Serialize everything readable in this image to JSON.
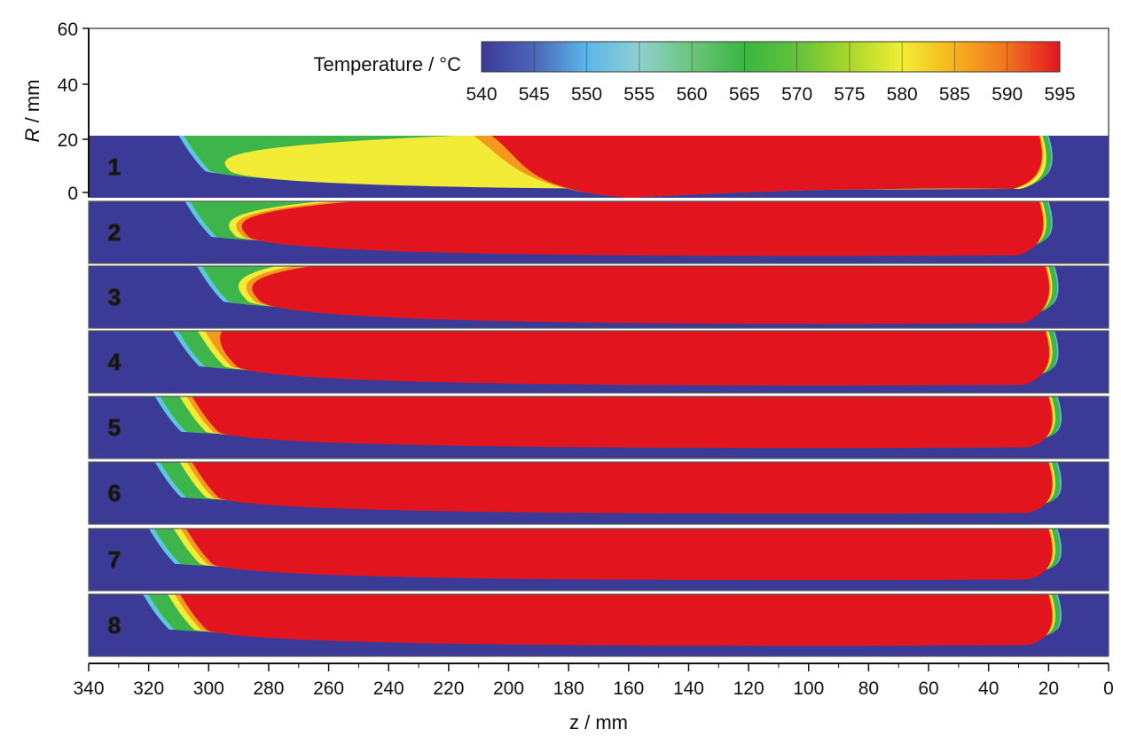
{
  "chart_data": {
    "type": "heatmap",
    "title": "",
    "colorbar": {
      "label": "Temperature / °C",
      "ticks": [
        "540",
        "545",
        "550",
        "555",
        "560",
        "565",
        "570",
        "575",
        "580",
        "585",
        "590",
        "595"
      ],
      "range": [
        540,
        595
      ],
      "colors": [
        "#3b3a97",
        "#4b66b8",
        "#5bb6e8",
        "#8fd0cf",
        "#6cc47a",
        "#3bb543",
        "#62c23a",
        "#a9d82a",
        "#f0ee36",
        "#f6b21c",
        "#f0731f",
        "#e2151f"
      ]
    },
    "xlabel": "z / mm",
    "ylabel_italic": "R",
    "ylabel_rest": " / mm",
    "x_axis": {
      "range": [
        340,
        0
      ],
      "reversed": true,
      "tick_labels": [
        "340",
        "320",
        "300",
        "280",
        "260",
        "240",
        "220",
        "200",
        "180",
        "160",
        "140",
        "120",
        "100",
        "80",
        "60",
        "40",
        "20",
        "0"
      ]
    },
    "y_axis": {
      "range": [
        0,
        60
      ],
      "tick_labels": [
        "0",
        "20",
        "40",
        "60"
      ]
    },
    "strip_r_range": [
      0,
      20
    ],
    "levels": [
      540,
      555,
      565,
      575,
      585,
      595
    ],
    "panels": [
      {
        "label": "1",
        "x_outer": 310,
        "x_peak_end": 185,
        "x_vee": 160,
        "r_top_at_outer": 14,
        "r_bottom_at_outer": 4,
        "x_right_hot": 35,
        "x_right_outer": 20
      },
      {
        "label": "2",
        "x_outer": 308,
        "x_peak_end": 230,
        "x_vee": null,
        "r_top_at_outer": 14,
        "r_bottom_at_outer": 6,
        "x_right_hot": 33,
        "x_right_outer": 20
      },
      {
        "label": "3",
        "x_outer": 304,
        "x_peak_end": 245,
        "x_vee": null,
        "r_top_at_outer": 14,
        "r_bottom_at_outer": 5,
        "x_right_hot": 28,
        "x_right_outer": 18
      },
      {
        "label": "4",
        "x_outer": 312,
        "x_peak_end": 275,
        "x_vee": null,
        "r_top_at_outer": 14,
        "r_bottom_at_outer": 6,
        "x_right_hot": 27,
        "x_right_outer": 18
      },
      {
        "label": "5",
        "x_outer": 318,
        "x_peak_end": 295,
        "x_vee": null,
        "r_top_at_outer": 14,
        "r_bottom_at_outer": 7,
        "x_right_hot": 27,
        "x_right_outer": 17
      },
      {
        "label": "6",
        "x_outer": 318,
        "x_peak_end": 295,
        "x_vee": null,
        "r_top_at_outer": 14,
        "r_bottom_at_outer": 7,
        "x_right_hot": 26,
        "x_right_outer": 17
      },
      {
        "label": "7",
        "x_outer": 320,
        "x_peak_end": 300,
        "x_vee": null,
        "r_top_at_outer": 14,
        "r_bottom_at_outer": 7,
        "x_right_hot": 26,
        "x_right_outer": 17
      },
      {
        "label": "8",
        "x_outer": 322,
        "x_peak_end": 305,
        "x_vee": null,
        "r_top_at_outer": 14,
        "r_bottom_at_outer": 7,
        "x_right_hot": 26,
        "x_right_outer": 17
      }
    ]
  }
}
